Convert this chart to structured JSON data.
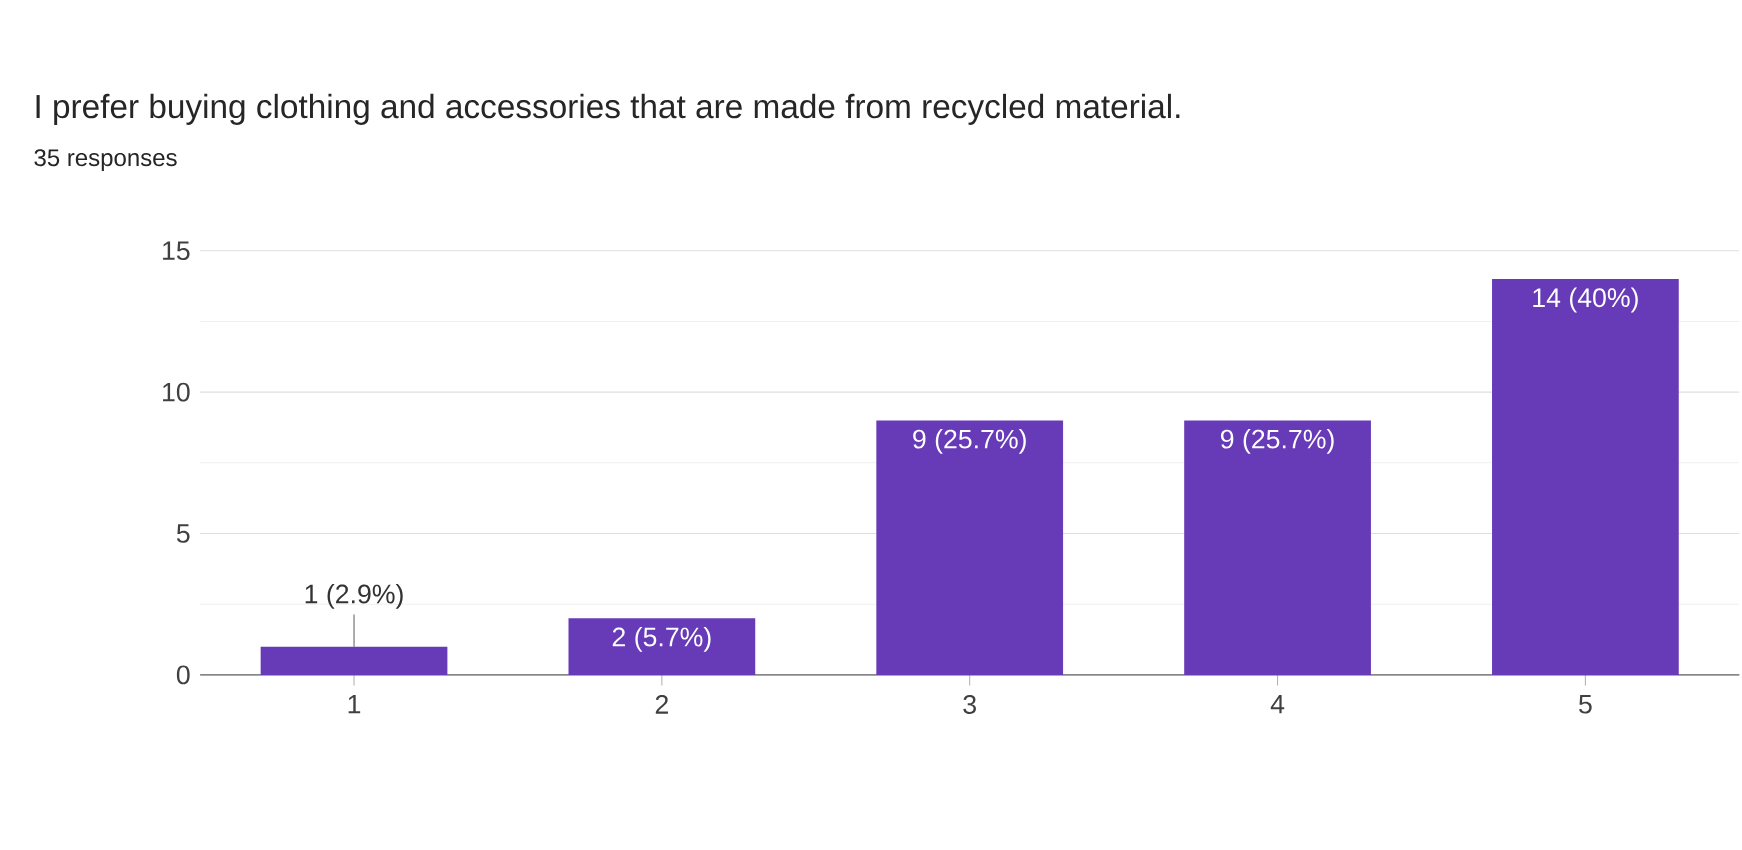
{
  "chart_data": {
    "type": "bar",
    "title": "I prefer buying clothing and accessories that are made from recycled material.",
    "subtitle": "35 responses",
    "categories": [
      "1",
      "2",
      "3",
      "4",
      "5"
    ],
    "values": [
      1,
      2,
      9,
      9,
      14
    ],
    "value_labels": [
      "1 (2.9%)",
      "2 (5.7%)",
      "9 (25.7%)",
      "9 (25.7%)",
      "14 (40%)"
    ],
    "color": "#673ab7",
    "ylim": [
      0,
      15
    ],
    "yticks": [
      0,
      5,
      10,
      15
    ],
    "grid": "y"
  }
}
